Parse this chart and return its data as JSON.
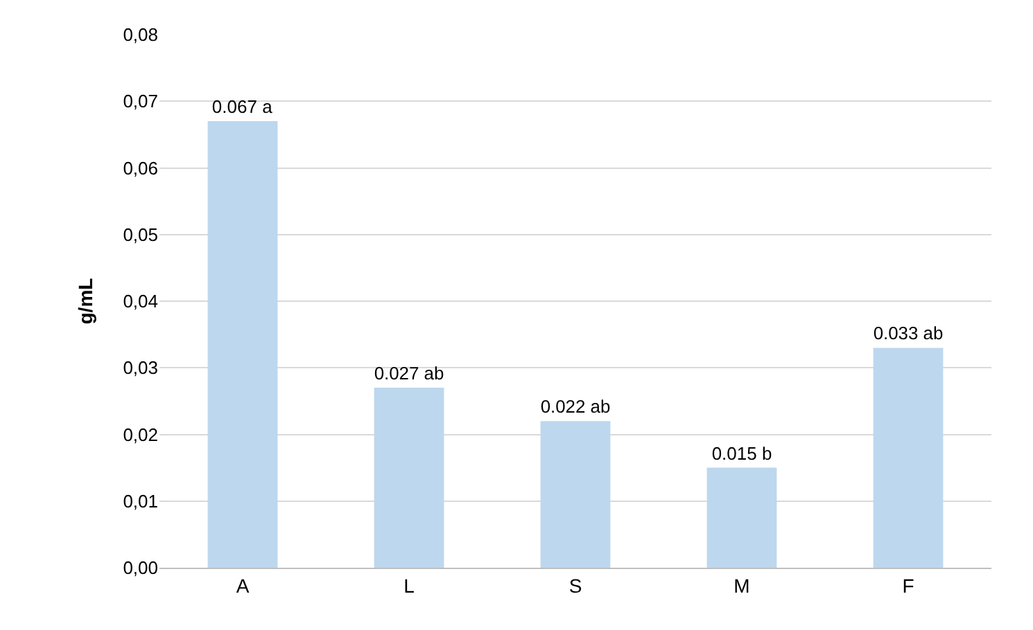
{
  "chart_data": {
    "type": "bar",
    "ylabel": "g/mL",
    "categories": [
      "A",
      "L",
      "S",
      "M",
      "F"
    ],
    "values": [
      0.067,
      0.027,
      0.022,
      0.015,
      0.033
    ],
    "value_labels": [
      "0.067 a",
      "0.027 ab",
      "0.022 ab",
      "0.015 b",
      "0.033 ab"
    ],
    "color": "#bdd7ee",
    "ylim": [
      0,
      0.08
    ],
    "yticks": [
      {
        "value": 0,
        "label": "0,00"
      },
      {
        "value": 0.01,
        "label": "0,01"
      },
      {
        "value": 0.02,
        "label": "0,02"
      },
      {
        "value": 0.03,
        "label": "0,03"
      },
      {
        "value": 0.04,
        "label": "0,04"
      },
      {
        "value": 0.05,
        "label": "0,05"
      },
      {
        "value": 0.06,
        "label": "0,06"
      },
      {
        "value": 0.07,
        "label": "0,07"
      },
      {
        "value": 0.08,
        "label": "0,08"
      }
    ],
    "grid": "y"
  }
}
